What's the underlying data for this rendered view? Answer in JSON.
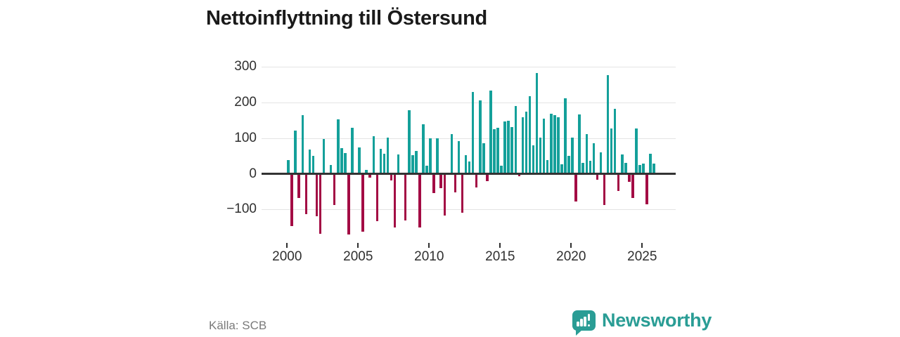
{
  "title": "Nettoinflyttning till Östersund",
  "footer": {
    "source": "Källa: SCB",
    "brand": "Newsworthy"
  },
  "colors": {
    "positive": "#14a09a",
    "negative": "#a30c44",
    "axis": "#333333",
    "grid": "#e4e4e4",
    "brand": "#2a9d95",
    "title_text": "#1a1a1a",
    "tick_text": "#2f2f2f",
    "muted_text": "#7a7a7a"
  },
  "chart_data": {
    "type": "bar",
    "title": "Nettoinflyttning till Östersund",
    "frequency": "quarterly",
    "start_period": "2000-Q1",
    "end_period": "2025-Q4",
    "grid": true,
    "ylim": [
      -185,
      320
    ],
    "x_ticks": [
      {
        "value": 2000,
        "label": "2000"
      },
      {
        "value": 2005,
        "label": "2005"
      },
      {
        "value": 2010,
        "label": "2010"
      },
      {
        "value": 2015,
        "label": "2015"
      },
      {
        "value": 2020,
        "label": "2020"
      },
      {
        "value": 2025,
        "label": "2025"
      }
    ],
    "y_ticks": [
      {
        "value": 300,
        "label": "300"
      },
      {
        "value": 200,
        "label": "200"
      },
      {
        "value": 100,
        "label": "100"
      },
      {
        "value": 0,
        "label": "0"
      },
      {
        "value": -100,
        "label": "−100"
      }
    ],
    "values": [
      38,
      -146,
      121,
      -67,
      165,
      -113,
      67,
      50,
      -120,
      -168,
      98,
      0,
      25,
      -87,
      153,
      71,
      59,
      -170,
      130,
      0,
      73,
      -163,
      11,
      -10,
      106,
      -133,
      69,
      56,
      102,
      -18,
      -150,
      55,
      0,
      -132,
      178,
      53,
      65,
      -150,
      139,
      22,
      99,
      -54,
      100,
      -41,
      -117,
      0,
      111,
      -53,
      92,
      -110,
      52,
      35,
      230,
      -38,
      205,
      86,
      -20,
      234,
      125,
      129,
      22,
      147,
      148,
      131,
      190,
      -7,
      158,
      174,
      218,
      79,
      283,
      101,
      155,
      38,
      168,
      164,
      158,
      26,
      211,
      50,
      102,
      -77,
      167,
      30,
      111,
      36,
      85,
      -16,
      61,
      -88,
      277,
      127,
      182,
      -48,
      55,
      30,
      -23,
      -68,
      127,
      25,
      28,
      -85,
      57,
      28
    ]
  }
}
